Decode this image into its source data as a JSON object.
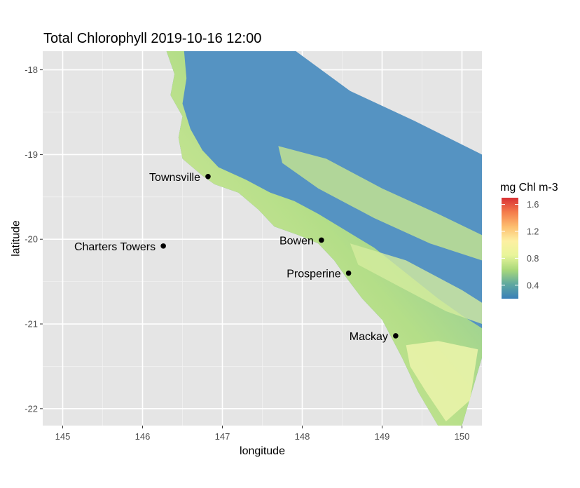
{
  "chart_data": {
    "type": "heatmap",
    "title": "Total Chlorophyll 2019-10-16 12:00",
    "xlabel": "longitude",
    "ylabel": "latitude",
    "xlim": [
      144.75,
      150.25
    ],
    "ylim": [
      -22.2,
      -17.78
    ],
    "x_ticks": [
      145,
      146,
      147,
      148,
      149,
      150
    ],
    "y_ticks": [
      -18,
      -19,
      -20,
      -21,
      -22
    ],
    "grid": true,
    "legend": {
      "title": "mg Chl m-3",
      "placement": "right",
      "range": [
        0.2,
        1.7
      ],
      "ticks": [
        0.4,
        0.8,
        1.2,
        1.6
      ],
      "colors": [
        "#3a7fb8",
        "#5fa8a0",
        "#a9d87a",
        "#e8f59a",
        "#fdf0a2",
        "#fdbe6f",
        "#f47c4b",
        "#d83034"
      ]
    },
    "ocean_color": "#5593c2",
    "coastal_color": "#c9e59b",
    "cities": [
      {
        "name": "Townsville",
        "lon": 146.82,
        "lat": -19.26
      },
      {
        "name": "Charters Towers",
        "lon": 146.26,
        "lat": -20.08
      },
      {
        "name": "Bowen",
        "lon": 148.24,
        "lat": -20.01
      },
      {
        "name": "Prosperine",
        "lon": 148.58,
        "lat": -20.4
      },
      {
        "name": "Mackay",
        "lon": 149.17,
        "lat": -21.14
      }
    ]
  }
}
